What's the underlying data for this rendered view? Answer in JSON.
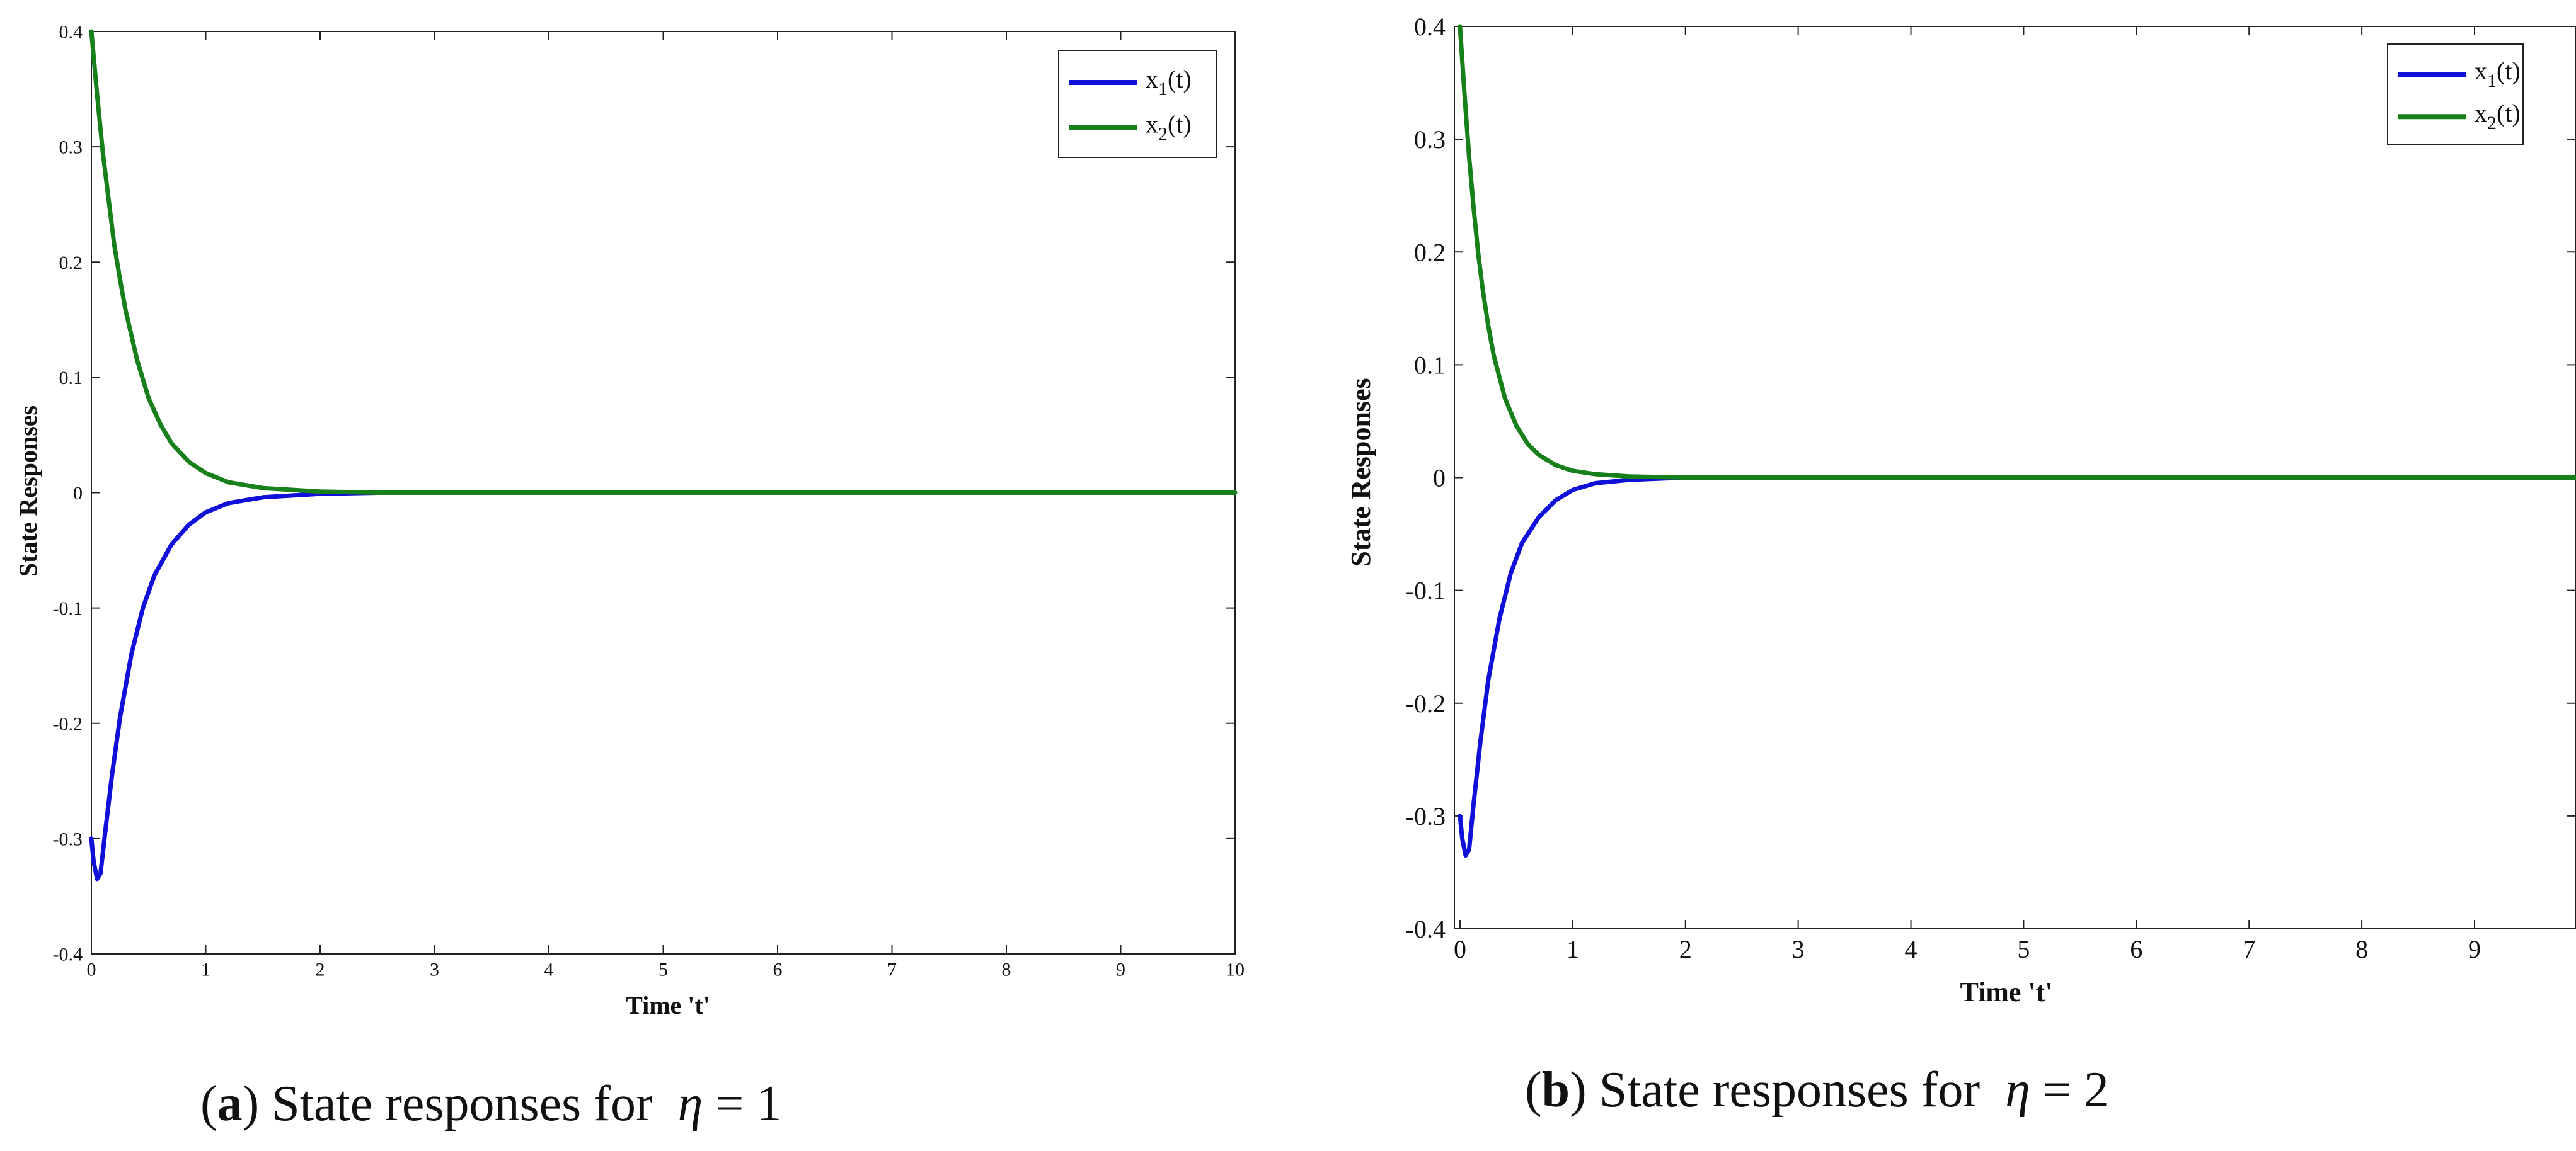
{
  "chart_data": [
    {
      "type": "line",
      "panel": "a",
      "xlabel": "Time 't'",
      "ylabel": "State Responses",
      "xlim": [
        0,
        10
      ],
      "ylim": [
        -0.4,
        0.4
      ],
      "xticks": [
        "0",
        "1",
        "2",
        "3",
        "4",
        "5",
        "6",
        "7",
        "8",
        "9",
        "10"
      ],
      "yticks": [
        "-0.4",
        "-0.3",
        "-0.2",
        "-0.1",
        "0",
        "0.1",
        "0.2",
        "0.3",
        "0.4"
      ],
      "legend": {
        "placement": "top-right",
        "entries": [
          {
            "base": "x",
            "sub": "1",
            "suffix": "(t)"
          },
          {
            "base": "x",
            "sub": "2",
            "suffix": "(t)"
          }
        ]
      },
      "series": [
        {
          "name": "x1(t)",
          "color": "#1010d8",
          "x": [
            0,
            0.02,
            0.05,
            0.08,
            0.12,
            0.18,
            0.25,
            0.35,
            0.45,
            0.55,
            0.7,
            0.85,
            1.0,
            1.2,
            1.5,
            2.0,
            2.5,
            3,
            4,
            5,
            6,
            7,
            8,
            9,
            10
          ],
          "y": [
            -0.3,
            -0.32,
            -0.335,
            -0.33,
            -0.295,
            -0.245,
            -0.195,
            -0.14,
            -0.1,
            -0.072,
            -0.045,
            -0.028,
            -0.017,
            -0.009,
            -0.004,
            -0.001,
            0,
            0,
            0,
            0,
            0,
            0,
            0,
            0,
            0
          ]
        },
        {
          "name": "x2(t)",
          "color": "#17801a",
          "x": [
            0,
            0.05,
            0.1,
            0.15,
            0.2,
            0.25,
            0.3,
            0.4,
            0.5,
            0.6,
            0.7,
            0.85,
            1.0,
            1.2,
            1.5,
            2.0,
            2.5,
            3,
            4,
            5,
            6,
            7,
            8,
            9,
            10
          ],
          "y": [
            0.4,
            0.345,
            0.295,
            0.255,
            0.215,
            0.185,
            0.158,
            0.115,
            0.082,
            0.06,
            0.043,
            0.027,
            0.017,
            0.009,
            0.004,
            0.001,
            0,
            0,
            0,
            0,
            0,
            0,
            0,
            0,
            0
          ]
        }
      ],
      "caption": {
        "letter": "(a",
        "rest": ") State responses for",
        "var": "η",
        "equation": "= 1"
      }
    },
    {
      "type": "line",
      "panel": "b",
      "xlabel": "Time 't'",
      "ylabel": "State Responses",
      "xlim": [
        -0.05,
        9.9
      ],
      "ylim": [
        -0.4,
        0.4
      ],
      "xticks": [
        "0",
        "1",
        "2",
        "3",
        "4",
        "5",
        "6",
        "7",
        "8",
        "9"
      ],
      "yticks": [
        "-0.4",
        "-0.3",
        "-0.2",
        "-0.1",
        "0",
        "0.1",
        "0.2",
        "0.3",
        "0.4"
      ],
      "legend": {
        "placement": "top-right",
        "entries": [
          {
            "base": "x",
            "sub": "1",
            "suffix": "(t)"
          },
          {
            "base": "x",
            "sub": "2",
            "suffix": "(t)"
          }
        ]
      },
      "series": [
        {
          "name": "x1(t)",
          "color": "#1010d8",
          "x": [
            0,
            0.02,
            0.05,
            0.08,
            0.12,
            0.18,
            0.25,
            0.35,
            0.45,
            0.55,
            0.7,
            0.85,
            1.0,
            1.2,
            1.5,
            2.0,
            2.5,
            3,
            4,
            5,
            6,
            7,
            8,
            9,
            9.9
          ],
          "y": [
            -0.3,
            -0.32,
            -0.335,
            -0.33,
            -0.29,
            -0.235,
            -0.18,
            -0.125,
            -0.085,
            -0.058,
            -0.035,
            -0.02,
            -0.011,
            -0.005,
            -0.002,
            0,
            0,
            0,
            0,
            0,
            0,
            0,
            0,
            0,
            0
          ]
        },
        {
          "name": "x2(t)",
          "color": "#17801a",
          "x": [
            0,
            0.04,
            0.08,
            0.12,
            0.16,
            0.2,
            0.25,
            0.3,
            0.4,
            0.5,
            0.6,
            0.7,
            0.85,
            1.0,
            1.2,
            1.5,
            2.0,
            2.5,
            3,
            4,
            5,
            6,
            7,
            8,
            9,
            9.9
          ],
          "y": [
            0.4,
            0.34,
            0.285,
            0.24,
            0.2,
            0.168,
            0.135,
            0.108,
            0.07,
            0.046,
            0.03,
            0.02,
            0.011,
            0.006,
            0.003,
            0.001,
            0,
            0,
            0,
            0,
            0,
            0,
            0,
            0,
            0,
            0
          ]
        }
      ],
      "caption": {
        "letter": "(b",
        "rest": ") State responses for",
        "var": "η",
        "equation": "= 2"
      }
    }
  ]
}
